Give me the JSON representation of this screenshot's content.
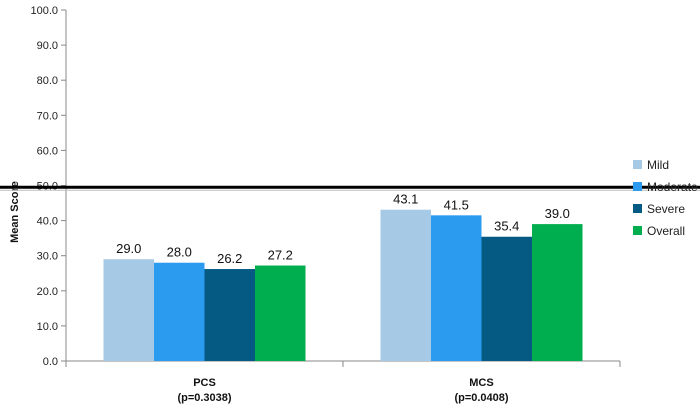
{
  "chart_data": {
    "type": "bar",
    "title": "",
    "xlabel": "",
    "ylabel": "Mean Score",
    "ylim": [
      0,
      100
    ],
    "yticks": [
      "0.0",
      "10.0",
      "20.0",
      "30.0",
      "40.0",
      "50.0",
      "60.0",
      "70.0",
      "80.0",
      "90.0",
      "100.0"
    ],
    "grid": false,
    "legend_position": "right",
    "categories": [
      {
        "name": "PCS",
        "sub": "(p=0.3038)"
      },
      {
        "name": "MCS",
        "sub": "(p=0.0408)"
      }
    ],
    "series": [
      {
        "name": "Mild",
        "color": "#a6cae6",
        "values": [
          29.0,
          43.1
        ],
        "labels": [
          "29.0",
          "43.1"
        ]
      },
      {
        "name": "Moderate",
        "color": "#2b9bf0",
        "values": [
          28.0,
          41.5
        ],
        "labels": [
          "28.0",
          "41.5"
        ]
      },
      {
        "name": "Severe",
        "color": "#045a82",
        "values": [
          26.2,
          35.4
        ],
        "labels": [
          "26.2",
          "35.4"
        ]
      },
      {
        "name": "Overall",
        "color": "#00ae4f",
        "values": [
          27.2,
          39.0
        ],
        "labels": [
          "27.2",
          "39.0"
        ]
      }
    ],
    "reference_line": {
      "value": 49.5,
      "color": "#000000"
    }
  }
}
